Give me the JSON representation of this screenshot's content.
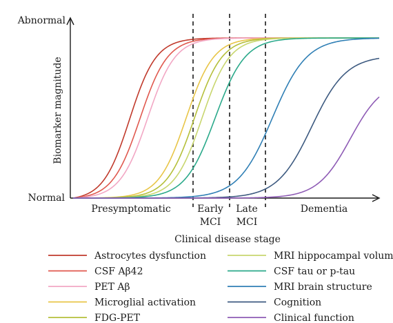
{
  "diagram": {
    "y_axis": {
      "label": "Biomarker magnitude",
      "top_label": "Abnormal",
      "bottom_label": "Normal"
    },
    "x_axis": {
      "label": "Clinical disease stage"
    },
    "stages": [
      {
        "label": "Presymptomatic"
      },
      {
        "label_line1": "Early",
        "label_line2": "MCI"
      },
      {
        "label_line1": "Late",
        "label_line2": "MCI"
      },
      {
        "label": "Dementia"
      }
    ],
    "curves": [
      {
        "label": "Astrocytes dysfunction",
        "color": "#c0392b"
      },
      {
        "label": "CSF Aβ42",
        "color": "#e0584e"
      },
      {
        "label": "PET Aβ",
        "color": "#f2a7c4"
      },
      {
        "label": "Microglial activation",
        "color": "#e8c547"
      },
      {
        "label": "FDG-PET",
        "color": "#b5bf3a"
      },
      {
        "label": "MRI hippocampal volume",
        "color": "#c8d66e"
      },
      {
        "label": "CSF tau or p-tau",
        "color": "#2aa98a"
      },
      {
        "label": "MRI brain structure",
        "color": "#2f7fb5"
      },
      {
        "label": "Cognition",
        "color": "#3d5a80"
      },
      {
        "label": "Clinical function",
        "color": "#8e5bb5"
      }
    ]
  }
}
